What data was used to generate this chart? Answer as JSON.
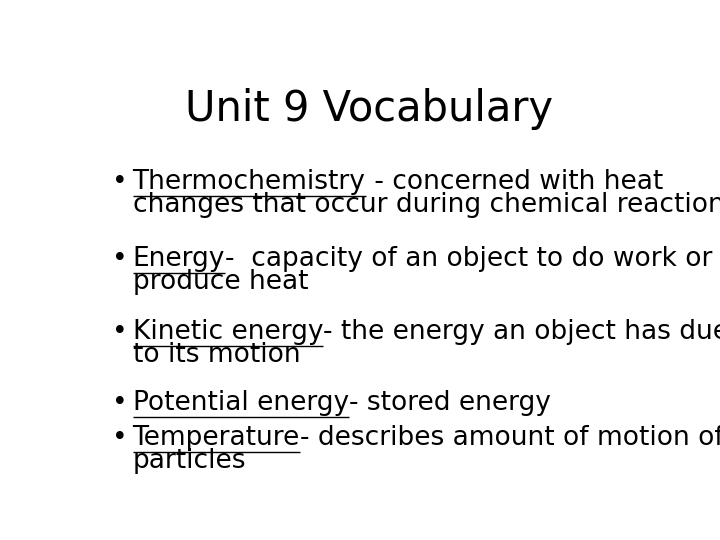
{
  "title": "Unit 9 Vocabulary",
  "title_fontsize": 30,
  "background_color": "#ffffff",
  "text_color": "#000000",
  "bullet_char": "•",
  "fontsize": 19,
  "entries": [
    {
      "underlined": "Thermochemistry",
      "line1_rest": " - concerned with heat",
      "line2": "changes that occur during chemical reactions"
    },
    {
      "underlined": "Energy",
      "line1_rest": "-  capacity of an object to do work or",
      "line2": "produce heat"
    },
    {
      "underlined": "Kinetic energy",
      "line1_rest": "- the energy an object has due",
      "line2": "to its motion"
    },
    {
      "underlined": "Potential energy",
      "line1_rest": "- stored energy",
      "line2": null
    },
    {
      "underlined": "Temperature",
      "line1_rest": "- describes amount of motion of",
      "line2": "particles"
    }
  ]
}
